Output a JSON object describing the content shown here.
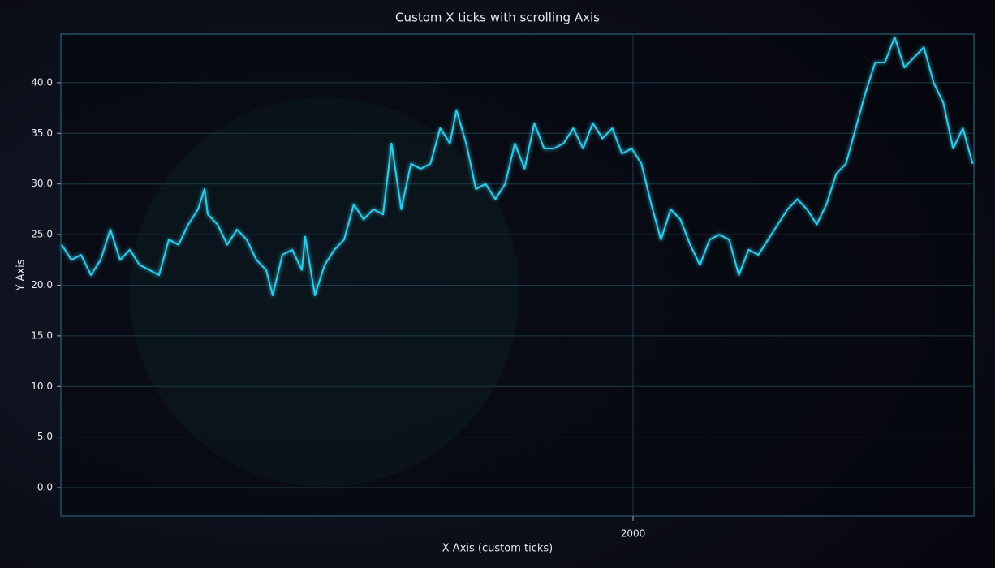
{
  "chart_data": {
    "type": "line",
    "title": "Custom X ticks with scrolling Axis",
    "x_label": "X Axis (custom ticks)",
    "y_label": "Y Axis",
    "xlim": [
      1118.75,
      2525
    ],
    "ylim": [
      -2.8,
      44.8
    ],
    "xticks": [
      2000
    ],
    "yticks": [
      {
        "value": 0,
        "label": "0.0"
      },
      {
        "value": 5,
        "label": "5.0"
      },
      {
        "value": 10,
        "label": "10.0"
      },
      {
        "value": 15,
        "label": "15.0"
      },
      {
        "value": 20,
        "label": "20.0"
      },
      {
        "value": 25,
        "label": "25.0"
      },
      {
        "value": 30,
        "label": "30.0"
      },
      {
        "value": 35,
        "label": "35.0"
      },
      {
        "value": 40,
        "label": "40.0"
      }
    ],
    "grid": true,
    "series": [
      {
        "color": "#2fcbea",
        "x": [
          1120,
          1135,
          1150,
          1165,
          1180,
          1195,
          1210,
          1225,
          1240,
          1255,
          1270,
          1285,
          1300,
          1315,
          1330,
          1340,
          1345,
          1360,
          1375,
          1390,
          1405,
          1420,
          1435,
          1445,
          1460,
          1475,
          1490,
          1495,
          1510,
          1525,
          1540,
          1555,
          1570,
          1585,
          1600,
          1615,
          1628,
          1643,
          1658,
          1673,
          1688,
          1703,
          1718,
          1728,
          1743,
          1758,
          1773,
          1788,
          1803,
          1818,
          1833,
          1848,
          1863,
          1878,
          1893,
          1908,
          1923,
          1938,
          1953,
          1968,
          1983,
          1998,
          2013,
          2028,
          2043,
          2058,
          2073,
          2088,
          2103,
          2118,
          2133,
          2148,
          2163,
          2178,
          2193,
          2208,
          2223,
          2238,
          2253,
          2268,
          2283,
          2298,
          2313,
          2328,
          2343,
          2358,
          2373,
          2388,
          2403,
          2418,
          2433,
          2448,
          2463,
          2478,
          2493,
          2508,
          2523
        ],
        "values": [
          24,
          22.5,
          23,
          21,
          22.5,
          25.5,
          22.5,
          23.5,
          22,
          21.5,
          21,
          24.5,
          24,
          26,
          27.5,
          29.5,
          27,
          26,
          24,
          25.5,
          24.5,
          22.5,
          21.5,
          19,
          23,
          23.5,
          21.5,
          24.8,
          19,
          22,
          23.5,
          24.5,
          28,
          26.5,
          27.5,
          27,
          34,
          27.5,
          32,
          31.5,
          32,
          35.5,
          34,
          37.3,
          34,
          29.5,
          30,
          28.5,
          30,
          34,
          31.5,
          36,
          33.5,
          33.5,
          34,
          35.5,
          33.5,
          36,
          34.5,
          35.5,
          33,
          33.5,
          32,
          28,
          24.5,
          27.5,
          26.5,
          24,
          22,
          24.5,
          25,
          24.5,
          21,
          23.5,
          23,
          24.5,
          26,
          27.5,
          28.5,
          27.5,
          26,
          28,
          31,
          32,
          35.5,
          39,
          42,
          42,
          44.5,
          41.5,
          42.5,
          43.5,
          40,
          38,
          33.5,
          35.5,
          32
        ]
      }
    ]
  }
}
